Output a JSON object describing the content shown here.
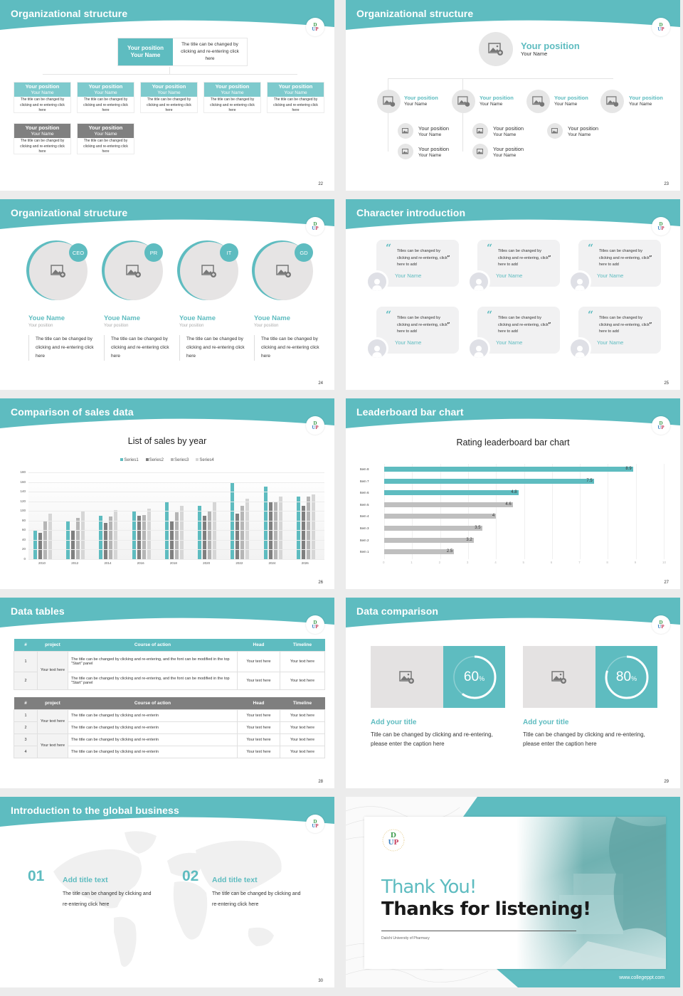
{
  "colors": {
    "accent": "#5ebcc0",
    "accent_light": "#7ecacd",
    "gray_dark": "#808080",
    "gray_mid": "#b5b5b5",
    "gray_light": "#d6d6d6",
    "background": "#ececec"
  },
  "logo": {
    "d": "D",
    "u": "U",
    "p": "P"
  },
  "slides": [
    {
      "title": "Organizational structure",
      "page": "22",
      "top": {
        "position": "Your position",
        "name": "Your Name",
        "desc": "The title can be changed by clicking and re-entering click here"
      },
      "row1": [
        {
          "position": "Your position",
          "name": "Your Name",
          "desc": "The title can be changed by clicking and re-entering click here"
        },
        {
          "position": "Your position",
          "name": "Your Name",
          "desc": "The title can be changed by clicking and re-entering click here"
        },
        {
          "position": "Your position",
          "name": "Your Name",
          "desc": "The title can be changed by clicking and re-entering click here"
        },
        {
          "position": "Your position",
          "name": "Your Name",
          "desc": "The title can be changed by clicking and re-entering click here"
        },
        {
          "position": "Your position",
          "name": "Your Name",
          "desc": "The title can be changed by clicking and re-entering click here"
        }
      ],
      "row2": [
        {
          "position": "Your position",
          "name": "Your Name",
          "desc": "The title can be changed by clicking and re-entering click here"
        },
        {
          "position": "Your position",
          "name": "Your Name",
          "desc": "The title can be changed by clicking and re-entering click here"
        }
      ]
    },
    {
      "title": "Organizational structure",
      "page": "23",
      "top": {
        "position": "Your position",
        "name": "Your Name"
      },
      "level1": [
        {
          "position": "Your position",
          "name": "Your Name"
        },
        {
          "position": "Your position",
          "name": "Your Name"
        },
        {
          "position": "Your position",
          "name": "Your Name"
        },
        {
          "position": "Your position",
          "name": "Your Name"
        }
      ],
      "level2": [
        {
          "position": "Your position",
          "name": "Your Name"
        },
        {
          "position": "Your position",
          "name": "Your Name"
        },
        {
          "position": "Your position",
          "name": "Your Name"
        },
        {
          "position": "Your position",
          "name": "Your Name"
        },
        {
          "position": "Your position",
          "name": "Your Name"
        }
      ]
    },
    {
      "title": "Organizational structure",
      "page": "24",
      "people": [
        {
          "badge": "CEO",
          "name": "Youe Name",
          "position": "Your position",
          "desc": "The title can be changed by clicking and re-entering click here"
        },
        {
          "badge": "PR",
          "name": "Youe Name",
          "position": "Your position",
          "desc": "The title can be changed by clicking and re-entering click here"
        },
        {
          "badge": "IT",
          "name": "Youe Name",
          "position": "Your position",
          "desc": "The title can be changed by clicking and re-entering click here"
        },
        {
          "badge": "GD",
          "name": "Youe Name",
          "position": "Your position",
          "desc": "The title can be changed by clicking and re-entering click here"
        }
      ]
    },
    {
      "title": "Character introduction",
      "page": "25",
      "quotes": [
        {
          "text": "Titles can be changed by clicking and re-entering, click here to add",
          "name": "Your Name"
        },
        {
          "text": "Titles can be changed by clicking and re-entering, click here to add",
          "name": "Your Name"
        },
        {
          "text": "Titles can be changed by clicking and re-entering, click here to add",
          "name": "Your Name"
        },
        {
          "text": "Titles can be changed by clicking and re-entering, click here to add",
          "name": "Your Name"
        },
        {
          "text": "Titles can be changed by clicking and re-entering, click here to add",
          "name": "Your Name"
        },
        {
          "text": "Titles can be changed by clicking and re-entering, click here to add",
          "name": "Your Name"
        }
      ],
      "open_quote": "“",
      "close_quote": "”"
    },
    {
      "title": "Comparison of sales data",
      "page": "26"
    },
    {
      "title": "Leaderboard bar chart",
      "page": "27"
    },
    {
      "title": "Data tables",
      "page": "28",
      "table1": {
        "headers": [
          "#",
          "project",
          "Course of action",
          "Head",
          "Timeline"
        ],
        "project": "Your text here",
        "rows": [
          {
            "n": "1",
            "action": "The title can be changed by clicking and re-entering, and the font can be modified in the top \"Start\" panel",
            "head": "Your text here",
            "timeline": "Your text here"
          },
          {
            "n": "2",
            "action": "The title can be changed by clicking and re-entering, and the font can be modified in the top \"Start\" panel",
            "head": "Your text here",
            "timeline": "Your text here"
          }
        ]
      },
      "table2": {
        "headers": [
          "#",
          "project",
          "Course of action",
          "Head",
          "Timeline"
        ],
        "projects": [
          "Your text here",
          "Your text here"
        ],
        "rows": [
          {
            "n": "1",
            "action": "The title can be changed by clicking and re-enterin",
            "head": "Your text here",
            "timeline": "Your text here"
          },
          {
            "n": "2",
            "action": "The title can be changed by clicking and re-enterin",
            "head": "Your text here",
            "timeline": "Your text here"
          },
          {
            "n": "3",
            "action": "The title can be changed by clicking and re-enterin",
            "head": "Your text here",
            "timeline": "Your text here"
          },
          {
            "n": "4",
            "action": "The title can be changed by clicking and re-enterin",
            "head": "Your text here",
            "timeline": "Your text here"
          }
        ]
      }
    },
    {
      "title": "Data comparison",
      "page": "29",
      "items": [
        {
          "value": "60",
          "unit": "%",
          "percent": 60,
          "title": "Add your title",
          "desc": "Title can be changed by clicking and re-entering, please enter the caption here"
        },
        {
          "value": "80",
          "unit": "%",
          "percent": 80,
          "title": "Add your title",
          "desc": "Title can be changed by clicking and re-entering, please enter the caption here"
        }
      ]
    },
    {
      "title": "Introduction to the global business",
      "page": "30",
      "items": [
        {
          "num": "01",
          "title": "Add title text",
          "desc": "The title can be changed by clicking and re-entering click here"
        },
        {
          "num": "02",
          "title": "Add title text",
          "desc": "The title can be changed by clicking and re-entering click here"
        }
      ]
    },
    {
      "thank_you": "Thank You!",
      "thanks_listening": "Thanks for listening!",
      "university": "Daiichi University of Pharmacy",
      "url": "www.collegeppt.com"
    }
  ],
  "chart_data": [
    {
      "type": "bar",
      "title": "List of sales by year",
      "categories": [
        "2010",
        "2012",
        "2014",
        "2016",
        "2018",
        "2020",
        "2022",
        "2024",
        "2026"
      ],
      "series": [
        {
          "name": "Series1",
          "color": "#5ebcc0",
          "values": [
            60,
            80,
            90,
            100,
            120,
            110,
            160,
            150,
            130
          ]
        },
        {
          "name": "Series2",
          "color": "#7f7f7f",
          "values": [
            55,
            60,
            75,
            90,
            80,
            90,
            95,
            120,
            110
          ]
        },
        {
          "name": "Series3",
          "color": "#b5b5b5",
          "values": [
            80,
            86,
            88,
            92,
            98,
            100,
            110,
            120,
            130
          ]
        },
        {
          "name": "Series4",
          "color": "#d6d6d6",
          "values": [
            95,
            99,
            102,
            105,
            110,
            120,
            126,
            130,
            135
          ]
        }
      ],
      "yticks": [
        "0",
        "20",
        "40",
        "60",
        "80",
        "100",
        "120",
        "140",
        "160",
        "180"
      ],
      "ylim": [
        0,
        180
      ],
      "legend_position": "top",
      "grid": true,
      "xlabel": "",
      "ylabel": ""
    },
    {
      "type": "bar",
      "orientation": "horizontal",
      "title": "Rating leaderboard bar chart",
      "categories": [
        "Item 8",
        "Item 7",
        "Item 6",
        "Item 5",
        "Item 4",
        "Item 3",
        "Item 2",
        "Item 1"
      ],
      "values": [
        8.9,
        7.5,
        4.8,
        4.6,
        4,
        3.5,
        3.2,
        2.5
      ],
      "labels": [
        "8.9",
        "7.5",
        "4.8",
        "4.6",
        "4",
        "3.5",
        "3.2",
        "2.5"
      ],
      "highlight": [
        true,
        true,
        true,
        false,
        false,
        false,
        false,
        false
      ],
      "xticks": [
        "0",
        "1",
        "2",
        "3",
        "4",
        "5",
        "6",
        "7",
        "8",
        "9",
        "10"
      ],
      "xlim": [
        0,
        10
      ],
      "grid": true,
      "xlabel": "",
      "ylabel": ""
    }
  ]
}
